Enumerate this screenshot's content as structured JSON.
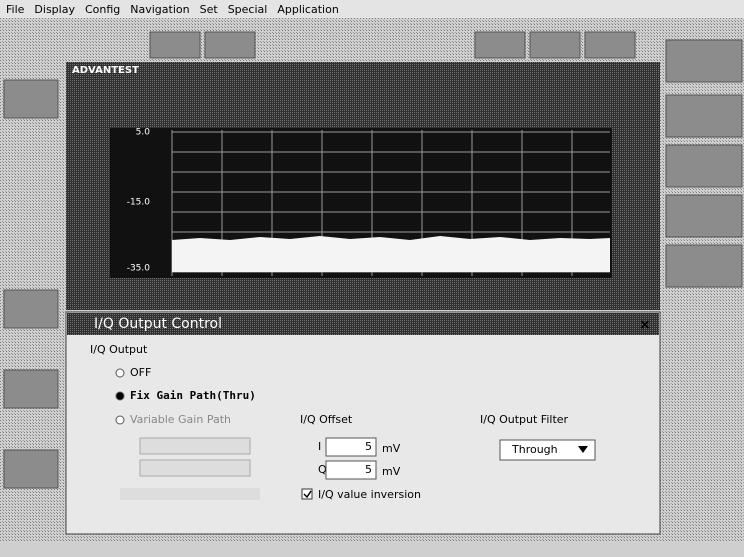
{
  "menu": [
    "File",
    "Display",
    "Config",
    "Navigation",
    "Set",
    "Special",
    "Application"
  ],
  "screen": {
    "brand": "ADVANTEST",
    "y_labels": [
      "5.0",
      "-15.0",
      "-35.0"
    ]
  },
  "dialog": {
    "title": "I/Q Output Control",
    "group": "I/Q Output",
    "options": [
      "OFF",
      "Fix Gain Path(Thru)",
      "Variable Gain Path"
    ],
    "offset": {
      "label": "I/Q Offset",
      "i_label": "I",
      "i_value": "5",
      "i_unit": "mV",
      "q_label": "Q",
      "q_value": "5",
      "q_unit": "mV"
    },
    "filter": {
      "label": "I/Q Output Filter",
      "value": "Through"
    },
    "inversion": "I/Q value inversion"
  }
}
